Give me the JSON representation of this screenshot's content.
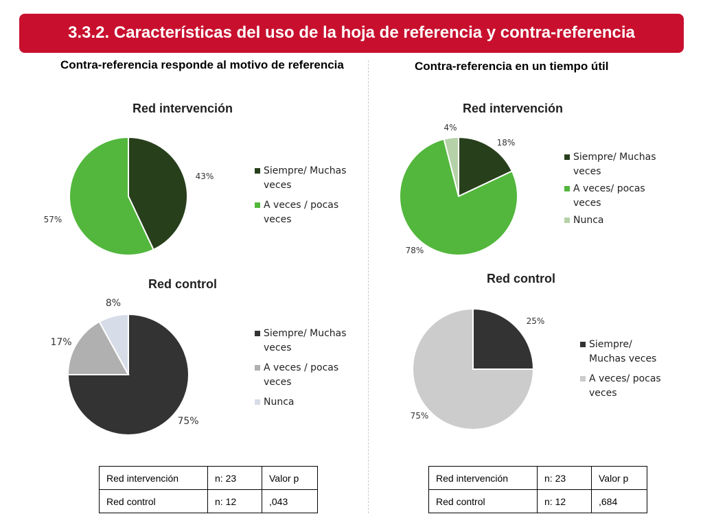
{
  "banner": {
    "title": "3.3.2. Características del uso de la hoja de referencia y contra-referencia"
  },
  "sections": {
    "left_title": "Contra-referencia responde al motivo de referencia",
    "right_title": "Contra-referencia en un tiempo útil"
  },
  "colors": {
    "banner": "#c8102e",
    "dark_green": "#283f1c",
    "bright_green": "#52b73c",
    "light_green": "#b5d1a8",
    "dark_gray": "#333333",
    "mid_gray": "#b0b0b0",
    "light_blue_gray": "#d7dde8",
    "light_gray": "#cccccc"
  },
  "chart_data": [
    {
      "type": "pie",
      "title": "Red intervención",
      "categories": [
        "Siempre/ Muchas veces",
        "A veces / pocas veces"
      ],
      "values": [
        43,
        57
      ],
      "data_labels": [
        "43%",
        "57%"
      ],
      "colors": [
        "#283f1c",
        "#52b73c"
      ],
      "legend": "right"
    },
    {
      "type": "pie",
      "title": "Red control",
      "categories": [
        "Siempre/ Muchas veces",
        "A veces / pocas veces",
        "Nunca"
      ],
      "values": [
        75,
        17,
        8
      ],
      "data_labels": [
        "75%",
        "17%",
        "8%"
      ],
      "colors": [
        "#333333",
        "#b0b0b0",
        "#d7dde8"
      ],
      "legend": "right"
    },
    {
      "type": "pie",
      "title": "Red intervención",
      "categories": [
        "Siempre/ Muchas veces",
        "A veces/ pocas veces",
        "Nunca"
      ],
      "values": [
        18,
        78,
        4
      ],
      "data_labels": [
        "18%",
        "78%",
        "4%"
      ],
      "colors": [
        "#283f1c",
        "#52b73c",
        "#b5d1a8"
      ],
      "legend": "right"
    },
    {
      "type": "pie",
      "title": "Red control",
      "categories": [
        "Siempre/ Muchas veces",
        "A veces/ pocas veces"
      ],
      "values": [
        25,
        75
      ],
      "data_labels": [
        "25%",
        "75%"
      ],
      "colors": [
        "#333333",
        "#cccccc"
      ],
      "legend": "right"
    }
  ],
  "tables": [
    {
      "rows": [
        [
          "Red intervención",
          "n: 23",
          "Valor p"
        ],
        [
          "Red control",
          "n: 12",
          ",043"
        ]
      ]
    },
    {
      "rows": [
        [
          "Red intervención",
          "n: 23",
          "Valor p"
        ],
        [
          "Red control",
          "n: 12",
          ",684"
        ]
      ]
    }
  ]
}
